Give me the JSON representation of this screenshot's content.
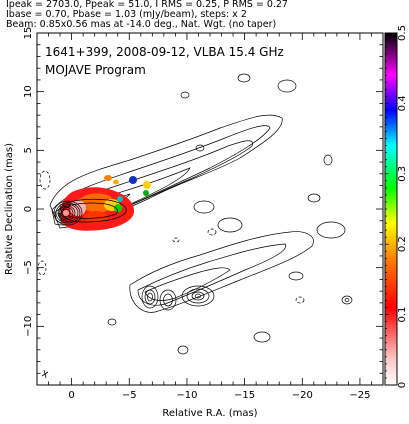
{
  "header": {
    "line1": "Ipeak = 2703.0, Ppeak = 51.0, I RMS = 0.25, P RMS = 0.27",
    "line2": "Ibase = 0.70, Pbase = 1.03 (mJy/beam), steps: x 2",
    "line3": "Beam: 0.85x0.56 mas at -14.0 deg., Nat. Wgt. (no taper)"
  },
  "chart_data": {
    "type": "heatmap",
    "annotations": [
      "1641+399, 2008-09-12, VLBA 15.4 GHz",
      "MOJAVE Program"
    ],
    "xlabel": "Relative R.A. (mas)",
    "ylabel": "Relative Declination (mas)",
    "xlim": [
      3,
      -27
    ],
    "ylim": [
      -15,
      15
    ],
    "xticks": [
      0,
      -5,
      -10,
      -15,
      -20,
      -25
    ],
    "yticks": [
      -10,
      -5,
      0,
      5,
      10,
      15
    ],
    "colorbar": {
      "min": 0,
      "max": 0.5,
      "ticks": [
        0,
        0.1,
        0.2,
        0.3,
        0.4,
        0.5
      ],
      "colors": [
        "#ffffff",
        "#ffc0c0",
        "#ff0000",
        "#ff8000",
        "#ffff00",
        "#00ff00",
        "#00ffff",
        "#0000ff",
        "#ff00ff",
        "#000000"
      ]
    },
    "grid": false,
    "core_position": [
      0,
      0
    ],
    "jet_direction_deg": 295
  },
  "icons": {
    "beam": "beam-ellipse-icon"
  }
}
